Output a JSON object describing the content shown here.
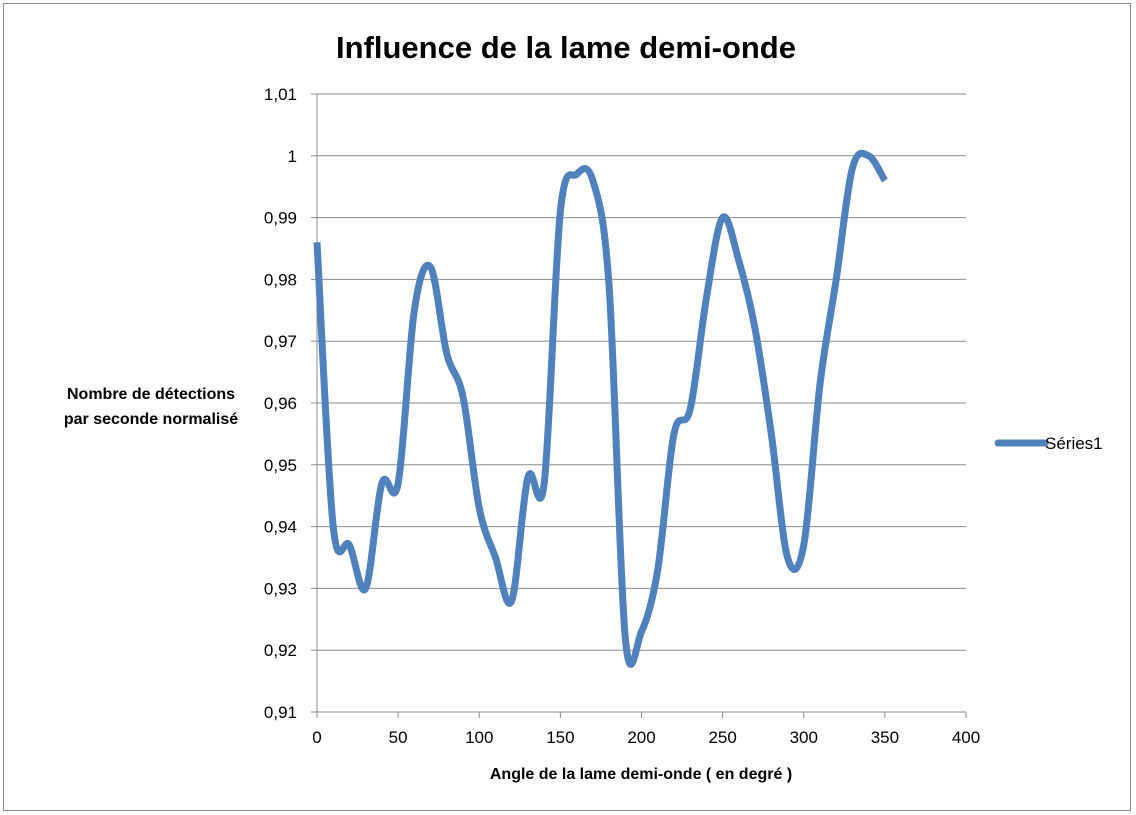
{
  "chart_data": {
    "type": "line",
    "title": "Influence de la lame demi-onde",
    "xlabel": "Angle de la lame demi-onde ( en degré )",
    "ylabel_lines": [
      "Nombre de détections",
      "par seconde normalisé"
    ],
    "xlim": [
      0,
      400
    ],
    "ylim": [
      0.91,
      1.01
    ],
    "xticks": [
      0,
      50,
      100,
      150,
      200,
      250,
      300,
      350,
      400
    ],
    "xtick_labels": [
      "0",
      "50",
      "100",
      "150",
      "200",
      "250",
      "300",
      "350",
      "400"
    ],
    "yticks": [
      0.91,
      0.92,
      0.93,
      0.94,
      0.95,
      0.96,
      0.97,
      0.98,
      0.99,
      1.0,
      1.01
    ],
    "ytick_labels": [
      "0,91",
      "0,92",
      "0,93",
      "0,94",
      "0,95",
      "0,96",
      "0,97",
      "0,98",
      "0,99",
      "1",
      "1,01"
    ],
    "grid": "horizontal",
    "legend_position": "right",
    "series": [
      {
        "name": "Séries1",
        "color": "#4f81bd",
        "x": [
          0,
          10,
          20,
          30,
          40,
          50,
          60,
          70,
          80,
          90,
          100,
          110,
          120,
          130,
          140,
          150,
          160,
          170,
          180,
          190,
          200,
          210,
          220,
          230,
          240,
          250,
          260,
          270,
          280,
          290,
          300,
          310,
          320,
          330,
          340,
          350
        ],
        "y": [
          0.986,
          0.94,
          0.937,
          0.93,
          0.947,
          0.947,
          0.975,
          0.982,
          0.968,
          0.961,
          0.943,
          0.935,
          0.928,
          0.948,
          0.947,
          0.991,
          0.997,
          0.996,
          0.979,
          0.922,
          0.923,
          0.933,
          0.955,
          0.959,
          0.977,
          0.99,
          0.983,
          0.972,
          0.955,
          0.935,
          0.937,
          0.963,
          0.98,
          0.998,
          1.0,
          0.996
        ]
      }
    ]
  }
}
